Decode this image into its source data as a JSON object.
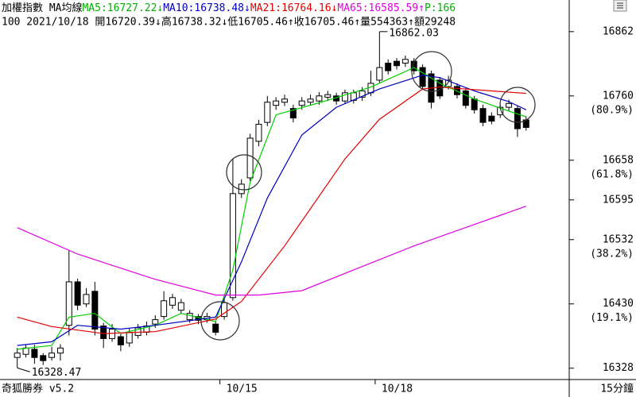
{
  "chart_data": {
    "type": "candlestick",
    "title": "加權指數 MA均線",
    "indicators": [
      {
        "label": "MA5:16727.22↓",
        "color": "#00b000"
      },
      {
        "label": "MA10:16738.48↓",
        "color": "#0000c0"
      },
      {
        "label": "MA21:16764.16↓",
        "color": "#e00000"
      },
      {
        "label": "MA65:16585.59↑",
        "color": "#e000e0"
      },
      {
        "label": "P:166",
        "color": "#00b000"
      }
    ],
    "info_line": "100 2021/10/18 開16720.39↓高16738.32↓低16705.46↑收16705.46↑量554363↑額29248",
    "footer_left": "奇狐勝券 v5.2",
    "footer_right": "15分鐘",
    "xlim": [
      -2,
      64
    ],
    "xticks": [
      {
        "value": 23.5,
        "label": "10/15"
      },
      {
        "value": 41.5,
        "label": "10/18"
      }
    ],
    "ylim": [
      16310,
      16887
    ],
    "yticks": [
      16862,
      16760,
      16658,
      16595,
      16532,
      16430,
      16328
    ],
    "fib_labels": [
      {
        "value": 16760,
        "label": "(80.9%)"
      },
      {
        "value": 16658,
        "label": "(61.8%)"
      },
      {
        "value": 16532,
        "label": "(38.2%)"
      },
      {
        "value": 16430,
        "label": "(19.1%)"
      }
    ],
    "up_color": "#ffffff",
    "down_color": "#000000",
    "candles": {
      "open": [
        16345,
        16350,
        16358,
        16348,
        16345,
        16352,
        16396,
        16465,
        16430,
        16450,
        16395,
        16375,
        16378,
        16368,
        16380,
        16385,
        16398,
        16410,
        16428,
        16420,
        16405,
        16410,
        16405,
        16398,
        16410,
        16440,
        16605,
        16630,
        16688,
        16718,
        16745,
        16750,
        16740,
        16745,
        16750,
        16752,
        16758,
        16760,
        16752,
        16753,
        16758,
        16765,
        16785,
        16812,
        16815,
        16812,
        16815,
        16805,
        16795,
        16785,
        16775,
        16775,
        16768,
        16755,
        16740,
        16728,
        16730,
        16742,
        16740,
        16722
      ],
      "high": [
        16360,
        16366,
        16365,
        16352,
        16362,
        16366,
        16515,
        16470,
        16455,
        16465,
        16400,
        16398,
        16382,
        16392,
        16398,
        16402,
        16412,
        16450,
        16446,
        16438,
        16420,
        16414,
        16416,
        16402,
        16440,
        16660,
        16628,
        16700,
        16722,
        16760,
        16758,
        16762,
        16746,
        16758,
        16762,
        16766,
        16768,
        16765,
        16770,
        16770,
        16774,
        16800,
        16862.03,
        16818,
        16820,
        16824,
        16820,
        16810,
        16800,
        16790,
        16792,
        16780,
        16772,
        16760,
        16746,
        16734,
        16748,
        16754,
        16745,
        16728
      ],
      "low": [
        16328.47,
        16345,
        16335,
        16333,
        16340,
        16340,
        16380,
        16420,
        16425,
        16380,
        16360,
        16370,
        16355,
        16362,
        16375,
        16380,
        16392,
        16405,
        16422,
        16414,
        16400,
        16398,
        16400,
        16380,
        16405,
        16435,
        16598,
        16625,
        16680,
        16712,
        16738,
        16744,
        16718,
        16738,
        16745,
        16746,
        16752,
        16746,
        16748,
        16748,
        16752,
        16760,
        16780,
        16794,
        16802,
        16806,
        16794,
        16770,
        16740,
        16755,
        16770,
        16756,
        16740,
        16732,
        16712,
        16715,
        16725,
        16736,
        16695,
        16705
      ],
      "close": [
        16352,
        16360,
        16345,
        16340,
        16352,
        16360,
        16465,
        16428,
        16445,
        16390,
        16375,
        16390,
        16365,
        16385,
        16392,
        16395,
        16405,
        16435,
        16440,
        16432,
        16415,
        16404,
        16410,
        16385,
        16432,
        16605,
        16620,
        16693,
        16715,
        16750,
        16752,
        16755,
        16725,
        16752,
        16755,
        16760,
        16762,
        16752,
        16765,
        16765,
        16768,
        16780,
        16805,
        16800,
        16808,
        16818,
        16800,
        16775,
        16750,
        16760,
        16785,
        16762,
        16745,
        16738,
        16718,
        16720,
        16742,
        16748,
        16708,
        16710
      ]
    },
    "series": [
      {
        "name": "MA5",
        "color": "#00d000",
        "x": [
          0,
          4,
          6,
          9,
          12,
          16,
          19,
          23,
          25,
          27,
          30,
          35,
          41,
          46,
          49,
          53,
          57,
          59
        ],
        "values": [
          16358,
          16364,
          16409,
          16415,
          16383,
          16396,
          16415,
          16402,
          16484,
          16623,
          16730,
          16749,
          16774,
          16805,
          16780,
          16755,
          16736,
          16727
        ]
      },
      {
        "name": "MA10",
        "color": "#0000c0",
        "x": [
          0,
          4,
          7,
          12,
          16,
          23,
          26,
          29,
          33,
          37,
          42,
          47,
          49,
          53,
          57,
          59
        ],
        "values": [
          16364,
          16370,
          16396,
          16390,
          16396,
          16409,
          16497,
          16598,
          16698,
          16742,
          16771,
          16793,
          16789,
          16768,
          16751,
          16738
        ]
      },
      {
        "name": "MA21",
        "color": "#e00000",
        "x": [
          0,
          4,
          10,
          16,
          23,
          26,
          31,
          38,
          42,
          47,
          49,
          55,
          59
        ],
        "values": [
          16409,
          16394,
          16383,
          16386,
          16406,
          16434,
          16522,
          16660,
          16723,
          16771,
          16774,
          16768,
          16764
        ]
      },
      {
        "name": "MA65",
        "color": "#e000e0",
        "x": [
          0,
          7,
          16,
          23,
          28,
          33,
          39,
          46,
          53,
          59
        ],
        "values": [
          16551,
          16509,
          16469,
          16444,
          16444,
          16451,
          16484,
          16522,
          16556,
          16585
        ]
      }
    ],
    "annotations": [
      {
        "x": 42,
        "value": 16862.03
      },
      {
        "x": 0,
        "value": 16328.47
      }
    ]
  }
}
